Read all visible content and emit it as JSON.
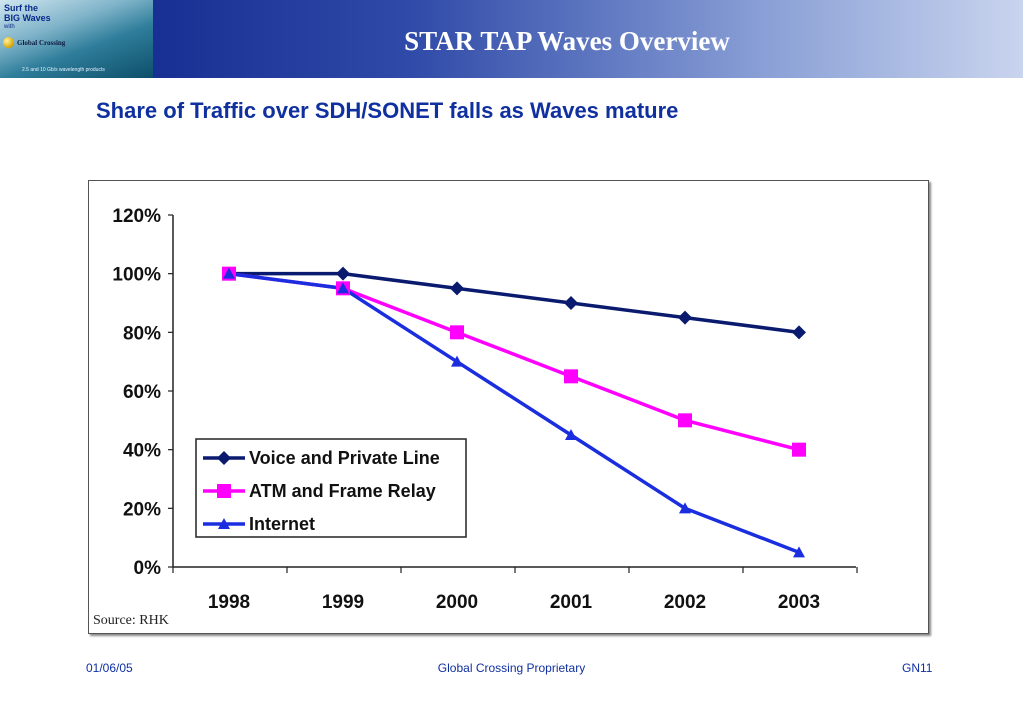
{
  "header": {
    "title": "STAR TAP Waves Overview",
    "logo": {
      "line1": "Surf the",
      "line2": "BIG Waves",
      "line3": "with",
      "line4": "Global Crossing",
      "line5": "2.5 and 10 Gb/s wavelength products"
    }
  },
  "slide": {
    "subtitle": "Share of Traffic over SDH/SONET falls as Waves mature"
  },
  "chart_data": {
    "type": "line",
    "title": "",
    "xlabel": "",
    "ylabel": "",
    "categories": [
      "1998",
      "1999",
      "2000",
      "2001",
      "2002",
      "2003"
    ],
    "ylim": [
      0,
      120
    ],
    "y_ticks": [
      "0%",
      "20%",
      "40%",
      "60%",
      "80%",
      "100%",
      "120%"
    ],
    "y_unit": "%",
    "grid": false,
    "legend_position": "bottom-left",
    "source": "Source:  RHK",
    "series": [
      {
        "name": "Voice and Private Line",
        "values": [
          100,
          100,
          95,
          90,
          85,
          80
        ],
        "color": "#0a1a6e",
        "marker": "diamond"
      },
      {
        "name": "ATM and Frame Relay",
        "values": [
          100,
          95,
          80,
          65,
          50,
          40
        ],
        "color": "#ff00ff",
        "marker": "square"
      },
      {
        "name": "Internet",
        "values": [
          100,
          95,
          70,
          45,
          20,
          5
        ],
        "color": "#1a2ee0",
        "marker": "triangle"
      }
    ]
  },
  "footer": {
    "date": "01/06/05",
    "center": "Global Crossing Proprietary",
    "page": "GN11"
  }
}
